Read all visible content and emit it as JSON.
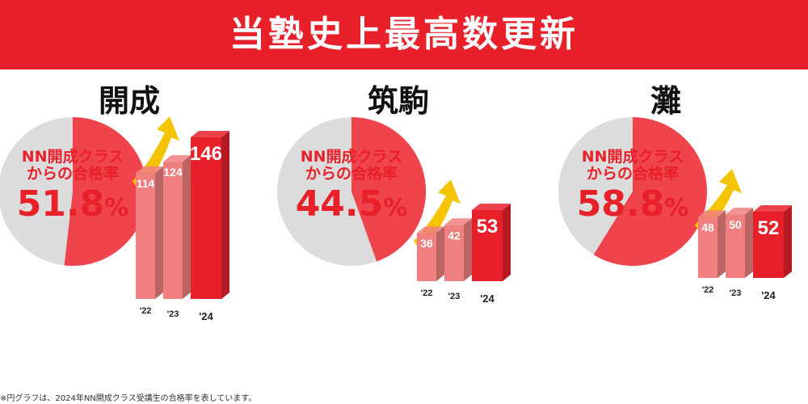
{
  "banner_title": "当塾史上最高数更新",
  "footnote": "※円グラフは、2024年NN開成クラス受講生の合格率を表しています。",
  "colors": {
    "banner": "#e8202a",
    "pie_fill": "#f0444c",
    "pie_rest": "#dcdcdc",
    "bar_old": "#f08080",
    "bar_new": "#e8202a",
    "arrow": "#f5c400"
  },
  "chart_data": [
    {
      "type": "pie",
      "school": "開成",
      "label_line1": "NN開成クラス",
      "label_line2": "からの合格率",
      "value": 51.8,
      "value_text": "51.8",
      "unit": "%",
      "bars": {
        "type": "bar",
        "categories": [
          "'22",
          "'23",
          "'24"
        ],
        "values": [
          114,
          124,
          146
        ]
      }
    },
    {
      "type": "pie",
      "school": "筑駒",
      "label_line1": "NN開成クラス",
      "label_line2": "からの合格率",
      "value": 44.5,
      "value_text": "44.5",
      "unit": "%",
      "bars": {
        "type": "bar",
        "categories": [
          "'22",
          "'23",
          "'24"
        ],
        "values": [
          36,
          42,
          53
        ]
      }
    },
    {
      "type": "pie",
      "school": "灘",
      "label_line1": "NN開成クラス",
      "label_line2": "からの合格率",
      "value": 58.8,
      "value_text": "58.8",
      "unit": "%",
      "bars": {
        "type": "bar",
        "categories": [
          "'22",
          "'23",
          "'24"
        ],
        "values": [
          48,
          50,
          52
        ]
      }
    }
  ]
}
